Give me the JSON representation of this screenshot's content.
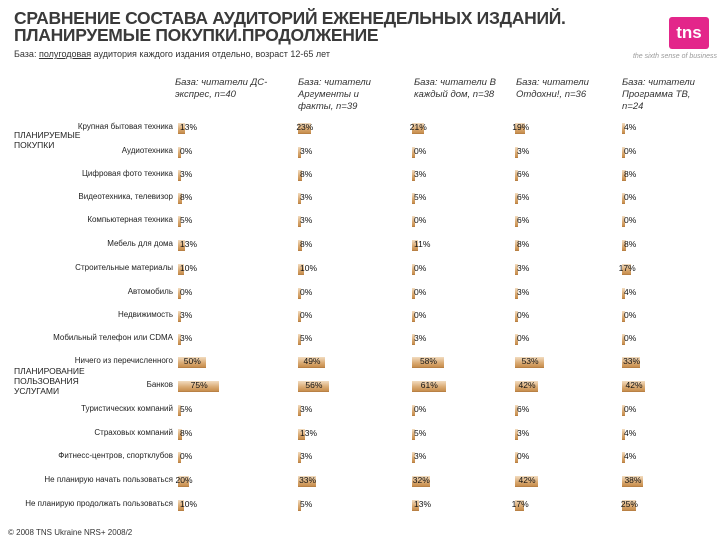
{
  "header": {
    "title_line1": "СРАВНЕНИЕ СОСТАВА АУДИТОРИЙ ЕЖЕНЕДЕЛЬНЫХ ИЗДАНИЙ.",
    "title_line2": "ПЛАНИРУЕМЫЕ ПОКУПКИ.ПРОДОЛЖЕНИЕ",
    "base_prefix": "База: ",
    "base_underlined": "полугодовая",
    "base_suffix": " аудитория каждого издания отдельно, возраст 12-65 лет",
    "logo_text": "tns",
    "tagline": "the sixth sense of business"
  },
  "footer": "© 2008 TNS Ukraine  NRS+ 2008/2",
  "colors": {
    "bar": "#d9a972",
    "logo": "#e3268a",
    "title": "#3a3a3a"
  },
  "chart_data": {
    "type": "bar",
    "unit": "%",
    "value_max": 100,
    "groups": [
      {
        "label": "ПЛАНИРУЕМЫЕ ПОКУПКИ",
        "categories": [
          0,
          1,
          2,
          3,
          4,
          5,
          6,
          7,
          8,
          9,
          10
        ]
      },
      {
        "label": "ПЛАНИРОВАНИЕ ПОЛЬЗОВАНИЯ УСЛУГАМИ",
        "categories": [
          11,
          12,
          13,
          14,
          15,
          16,
          17
        ]
      }
    ],
    "categories": [
      "Крупная бытовая техника",
      "Аудиотехника",
      "Цифровая фото техника",
      "Видеотехника, телевизор",
      "Компьютерная техника",
      "Мебель для дома",
      "Строительные материалы",
      "Автомобиль",
      "Недвижимость",
      "Мобильный телефон или CDMA",
      "Ничего из перечисленного",
      "Банков",
      "Туристических компаний",
      "Страховых компаний",
      "Фитнесс-центров, спортклубов",
      "Не планирую начать пользоваться",
      "Не планирую продолжать пользоваться"
    ],
    "series": [
      {
        "name": "База: читатели ДС-экспрес, n=40",
        "values": [
          13,
          0,
          3,
          8,
          5,
          13,
          10,
          0,
          3,
          3,
          50,
          75,
          5,
          8,
          0,
          20,
          10
        ]
      },
      {
        "name": "База: читатели Аргументы и факты, n=39",
        "values": [
          23,
          3,
          8,
          3,
          3,
          8,
          10,
          0,
          0,
          5,
          49,
          56,
          3,
          13,
          3,
          33,
          5
        ]
      },
      {
        "name": "База: читатели В каждый дом, n=38",
        "values": [
          21,
          0,
          3,
          5,
          0,
          11,
          0,
          0,
          0,
          3,
          58,
          61,
          0,
          5,
          3,
          32,
          13
        ]
      },
      {
        "name": "База: читатели Отдохни!, n=36",
        "values": [
          19,
          3,
          6,
          6,
          6,
          8,
          3,
          3,
          0,
          0,
          53,
          42,
          6,
          3,
          0,
          42,
          17
        ]
      },
      {
        "name": "База: читатели Программа ТВ, n=24",
        "values": [
          4,
          0,
          8,
          0,
          0,
          8,
          17,
          4,
          0,
          0,
          33,
          42,
          0,
          4,
          4,
          38,
          25
        ]
      }
    ]
  }
}
